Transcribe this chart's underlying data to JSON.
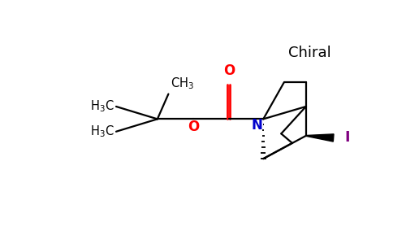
{
  "bg_color": "#ffffff",
  "chiral_text": "Chiral",
  "atom_colors": {
    "O": "#ff0000",
    "N": "#0000cc",
    "I": "#800080",
    "C": "#000000"
  },
  "lw": 1.6
}
